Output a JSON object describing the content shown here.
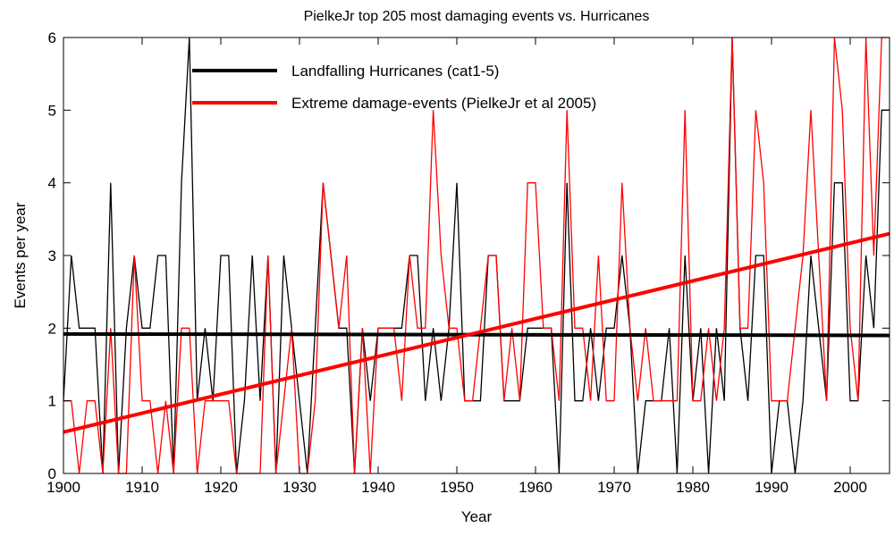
{
  "chart_data": {
    "type": "line",
    "title": "PielkeJr top 205 most damaging events vs. Hurricanes",
    "xlabel": "Year",
    "ylabel": "Events per year",
    "xlim": [
      1900,
      2005
    ],
    "ylim": [
      0,
      6
    ],
    "xticks": [
      1900,
      1910,
      1920,
      1930,
      1940,
      1950,
      1960,
      1970,
      1980,
      1990,
      2000
    ],
    "yticks": [
      0,
      1,
      2,
      3,
      4,
      5,
      6
    ],
    "grid": false,
    "legend_position": "top-left",
    "x_start": 1900,
    "series": [
      {
        "name": "Landfalling Hurricanes (cat1-5)",
        "color": "#000000",
        "values": [
          1,
          3,
          2,
          2,
          2,
          0,
          4,
          0,
          2,
          3,
          2,
          2,
          3,
          3,
          0,
          4,
          6,
          1,
          2,
          1,
          3,
          3,
          0,
          1,
          3,
          1,
          3,
          0,
          3,
          2,
          1,
          0,
          2,
          4,
          3,
          2,
          2,
          0,
          2,
          1,
          2,
          2,
          2,
          2,
          3,
          3,
          1,
          2,
          1,
          2,
          4,
          1,
          1,
          1,
          3,
          3,
          1,
          1,
          1,
          2,
          2,
          2,
          2,
          0,
          4,
          1,
          1,
          2,
          1,
          2,
          2,
          3,
          2,
          0,
          1,
          1,
          1,
          2,
          0,
          3,
          1,
          2,
          0,
          2,
          1,
          6,
          2,
          1,
          3,
          3,
          0,
          1,
          1,
          0,
          1,
          3,
          2,
          1,
          4,
          4,
          1,
          1,
          3,
          2,
          5,
          5
        ]
      },
      {
        "name": "Extreme damage-events (PielkeJr et al 2005)",
        "color": "#ff0000",
        "values": [
          1,
          1,
          0,
          1,
          1,
          0,
          2,
          0,
          0,
          3,
          1,
          1,
          0,
          1,
          0,
          2,
          2,
          0,
          1,
          1,
          1,
          1,
          0,
          0,
          0,
          0,
          3,
          0,
          1,
          2,
          0,
          0,
          1,
          4,
          3,
          2,
          3,
          0,
          2,
          0,
          2,
          2,
          2,
          1,
          3,
          2,
          2,
          5,
          3,
          2,
          2,
          1,
          1,
          2,
          3,
          3,
          1,
          2,
          1,
          4,
          4,
          2,
          2,
          1,
          5,
          2,
          2,
          1,
          3,
          1,
          1,
          4,
          2,
          1,
          2,
          1,
          1,
          1,
          1,
          5,
          1,
          1,
          2,
          1,
          2,
          6,
          2,
          2,
          5,
          4,
          1,
          1,
          1,
          2,
          3,
          5,
          3,
          1,
          6,
          5,
          2,
          1,
          6,
          3,
          6,
          6
        ]
      }
    ],
    "trend_lines": [
      {
        "name": "hurricane-trend",
        "color": "#000000",
        "x": [
          1900,
          2005
        ],
        "y": [
          1.92,
          1.9
        ]
      },
      {
        "name": "damage-trend",
        "color": "#ff0000",
        "x": [
          1900,
          2005
        ],
        "y": [
          0.57,
          3.3
        ]
      }
    ]
  }
}
